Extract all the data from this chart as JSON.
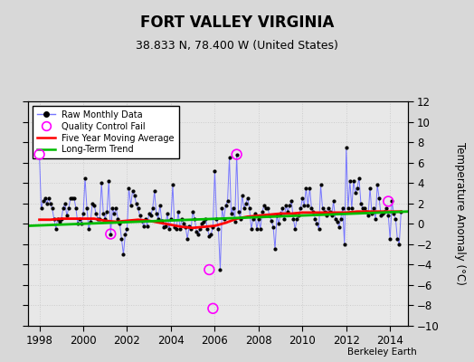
{
  "title": "FORT VALLEY VIRGINIA",
  "subtitle": "38.833 N, 78.400 W (United States)",
  "ylabel": "Temperature Anomaly (°C)",
  "credit": "Berkeley Earth",
  "xlim": [
    1997.5,
    2014.8
  ],
  "ylim": [
    -10,
    12
  ],
  "yticks": [
    -10,
    -8,
    -6,
    -4,
    -2,
    0,
    2,
    4,
    6,
    8,
    10,
    12
  ],
  "xticks": [
    1998,
    2000,
    2002,
    2004,
    2006,
    2008,
    2010,
    2012,
    2014
  ],
  "background_color": "#e8e8e8",
  "fig_background_color": "#d8d8d8",
  "raw_line_color": "#7777ff",
  "dot_color": "#000000",
  "ma_color": "#ff0000",
  "trend_color": "#00bb00",
  "qc_color": "#ff00ff",
  "raw_data_x": [
    1998.0,
    1998.083,
    1998.167,
    1998.25,
    1998.333,
    1998.417,
    1998.5,
    1998.583,
    1998.667,
    1998.75,
    1998.833,
    1998.917,
    1999.0,
    1999.083,
    1999.167,
    1999.25,
    1999.333,
    1999.417,
    1999.5,
    1999.583,
    1999.667,
    1999.75,
    1999.833,
    1999.917,
    2000.0,
    2000.083,
    2000.167,
    2000.25,
    2000.333,
    2000.417,
    2000.5,
    2000.583,
    2000.667,
    2000.75,
    2000.833,
    2000.917,
    2001.0,
    2001.083,
    2001.167,
    2001.25,
    2001.333,
    2001.417,
    2001.5,
    2001.583,
    2001.667,
    2001.75,
    2001.833,
    2001.917,
    2002.0,
    2002.083,
    2002.167,
    2002.25,
    2002.333,
    2002.417,
    2002.5,
    2002.583,
    2002.667,
    2002.75,
    2002.833,
    2002.917,
    2003.0,
    2003.083,
    2003.167,
    2003.25,
    2003.333,
    2003.417,
    2003.5,
    2003.583,
    2003.667,
    2003.75,
    2003.833,
    2003.917,
    2004.0,
    2004.083,
    2004.167,
    2004.25,
    2004.333,
    2004.417,
    2004.5,
    2004.583,
    2004.667,
    2004.75,
    2004.833,
    2004.917,
    2005.0,
    2005.083,
    2005.167,
    2005.25,
    2005.333,
    2005.417,
    2005.5,
    2005.583,
    2005.667,
    2005.75,
    2005.833,
    2005.917,
    2006.0,
    2006.083,
    2006.167,
    2006.25,
    2006.333,
    2006.417,
    2006.5,
    2006.583,
    2006.667,
    2006.75,
    2006.833,
    2006.917,
    2007.0,
    2007.083,
    2007.167,
    2007.25,
    2007.333,
    2007.417,
    2007.5,
    2007.583,
    2007.667,
    2007.75,
    2007.833,
    2007.917,
    2008.0,
    2008.083,
    2008.167,
    2008.25,
    2008.333,
    2008.417,
    2008.5,
    2008.583,
    2008.667,
    2008.75,
    2008.833,
    2008.917,
    2009.0,
    2009.083,
    2009.167,
    2009.25,
    2009.333,
    2009.417,
    2009.5,
    2009.583,
    2009.667,
    2009.75,
    2009.833,
    2009.917,
    2010.0,
    2010.083,
    2010.167,
    2010.25,
    2010.333,
    2010.417,
    2010.5,
    2010.583,
    2010.667,
    2010.75,
    2010.833,
    2010.917,
    2011.0,
    2011.083,
    2011.167,
    2011.25,
    2011.333,
    2011.417,
    2011.5,
    2011.583,
    2011.667,
    2011.75,
    2011.833,
    2011.917,
    2012.0,
    2012.083,
    2012.167,
    2012.25,
    2012.333,
    2012.417,
    2012.5,
    2012.583,
    2012.667,
    2012.75,
    2012.833,
    2012.917,
    2013.0,
    2013.083,
    2013.167,
    2013.25,
    2013.333,
    2013.417,
    2013.5,
    2013.583,
    2013.667,
    2013.75,
    2013.833,
    2013.917,
    2014.0,
    2014.083,
    2014.167,
    2014.25,
    2014.333,
    2014.417,
    2014.5
  ],
  "raw_data_y": [
    6.8,
    1.5,
    2.2,
    2.5,
    2.0,
    2.5,
    2.0,
    1.5,
    0.5,
    -0.5,
    0.5,
    0.2,
    0.5,
    1.5,
    2.0,
    0.8,
    1.5,
    2.5,
    2.5,
    2.5,
    1.5,
    0.0,
    0.5,
    0.0,
    1.0,
    4.5,
    1.5,
    -0.5,
    0.2,
    2.0,
    1.8,
    1.0,
    0.5,
    0.5,
    4.0,
    1.0,
    0.5,
    1.2,
    4.2,
    -1.0,
    1.5,
    1.0,
    1.5,
    0.5,
    0.0,
    -1.5,
    -3.0,
    -1.0,
    -0.5,
    3.5,
    1.8,
    3.2,
    2.8,
    2.0,
    1.5,
    0.8,
    0.3,
    -0.2,
    0.5,
    -0.2,
    1.0,
    0.8,
    1.5,
    3.2,
    1.0,
    0.5,
    1.8,
    0.3,
    -0.3,
    -0.2,
    1.0,
    -0.5,
    0.5,
    3.8,
    -0.3,
    -0.5,
    1.2,
    -0.5,
    0.5,
    0.0,
    -0.3,
    -1.5,
    -0.2,
    -0.5,
    1.2,
    0.5,
    -0.8,
    -1.0,
    -0.5,
    0.0,
    0.2,
    0.5,
    -0.5,
    -1.2,
    -1.0,
    -0.3,
    5.2,
    0.5,
    -0.5,
    -4.5,
    1.5,
    0.5,
    1.8,
    2.2,
    6.5,
    1.0,
    1.5,
    0.2,
    6.8,
    1.2,
    0.5,
    2.8,
    1.5,
    2.0,
    2.5,
    1.5,
    -0.5,
    0.5,
    1.0,
    -0.5,
    0.5,
    -0.5,
    1.2,
    1.8,
    1.5,
    1.5,
    0.8,
    0.3,
    -0.3,
    -2.5,
    0.8,
    0.0,
    1.0,
    1.5,
    0.5,
    1.8,
    1.2,
    1.8,
    2.2,
    0.5,
    -0.5,
    0.5,
    0.8,
    1.5,
    2.5,
    1.8,
    3.5,
    1.8,
    3.5,
    1.5,
    1.2,
    0.5,
    0.0,
    -0.5,
    3.8,
    1.5,
    1.2,
    0.8,
    1.5,
    1.2,
    0.8,
    2.2,
    0.5,
    0.2,
    -0.3,
    0.5,
    1.5,
    -2.0,
    7.5,
    1.5,
    4.2,
    1.5,
    4.2,
    3.0,
    3.5,
    4.5,
    2.0,
    1.5,
    1.5,
    1.2,
    0.8,
    3.5,
    1.0,
    1.5,
    0.5,
    3.8,
    2.5,
    0.8,
    1.0,
    1.2,
    1.5,
    0.8,
    -1.5,
    2.2,
    1.0,
    0.5,
    -1.5,
    -2.0,
    1.2
  ],
  "qc_fail_x": [
    1998.0,
    2001.25,
    2005.75,
    2005.917,
    2007.0,
    2013.917
  ],
  "qc_fail_y": [
    6.8,
    -1.0,
    -4.5,
    -8.3,
    6.8,
    2.2
  ],
  "ma_x": [
    1998.0,
    1998.5,
    1999.0,
    1999.5,
    2000.0,
    2000.5,
    2001.0,
    2001.5,
    2002.0,
    2002.5,
    2003.0,
    2003.5,
    2004.0,
    2004.5,
    2005.0,
    2005.5,
    2006.0,
    2006.5,
    2007.0,
    2007.5,
    2008.0,
    2008.5,
    2009.0,
    2009.5,
    2010.0,
    2010.5,
    2011.0,
    2011.5,
    2012.0,
    2012.5,
    2013.0,
    2013.5,
    2014.0,
    2014.5
  ],
  "ma_y": [
    0.4,
    0.4,
    0.5,
    0.5,
    0.5,
    0.5,
    0.3,
    0.2,
    0.3,
    0.4,
    0.3,
    0.1,
    -0.1,
    -0.3,
    -0.4,
    -0.3,
    -0.2,
    0.1,
    0.5,
    0.7,
    0.8,
    0.9,
    1.0,
    1.0,
    1.1,
    1.1,
    1.1,
    1.1,
    1.1,
    1.2,
    1.2,
    1.2,
    1.2,
    1.2
  ],
  "trend_x": [
    1997.5,
    2014.8
  ],
  "trend_y": [
    -0.2,
    1.2
  ]
}
